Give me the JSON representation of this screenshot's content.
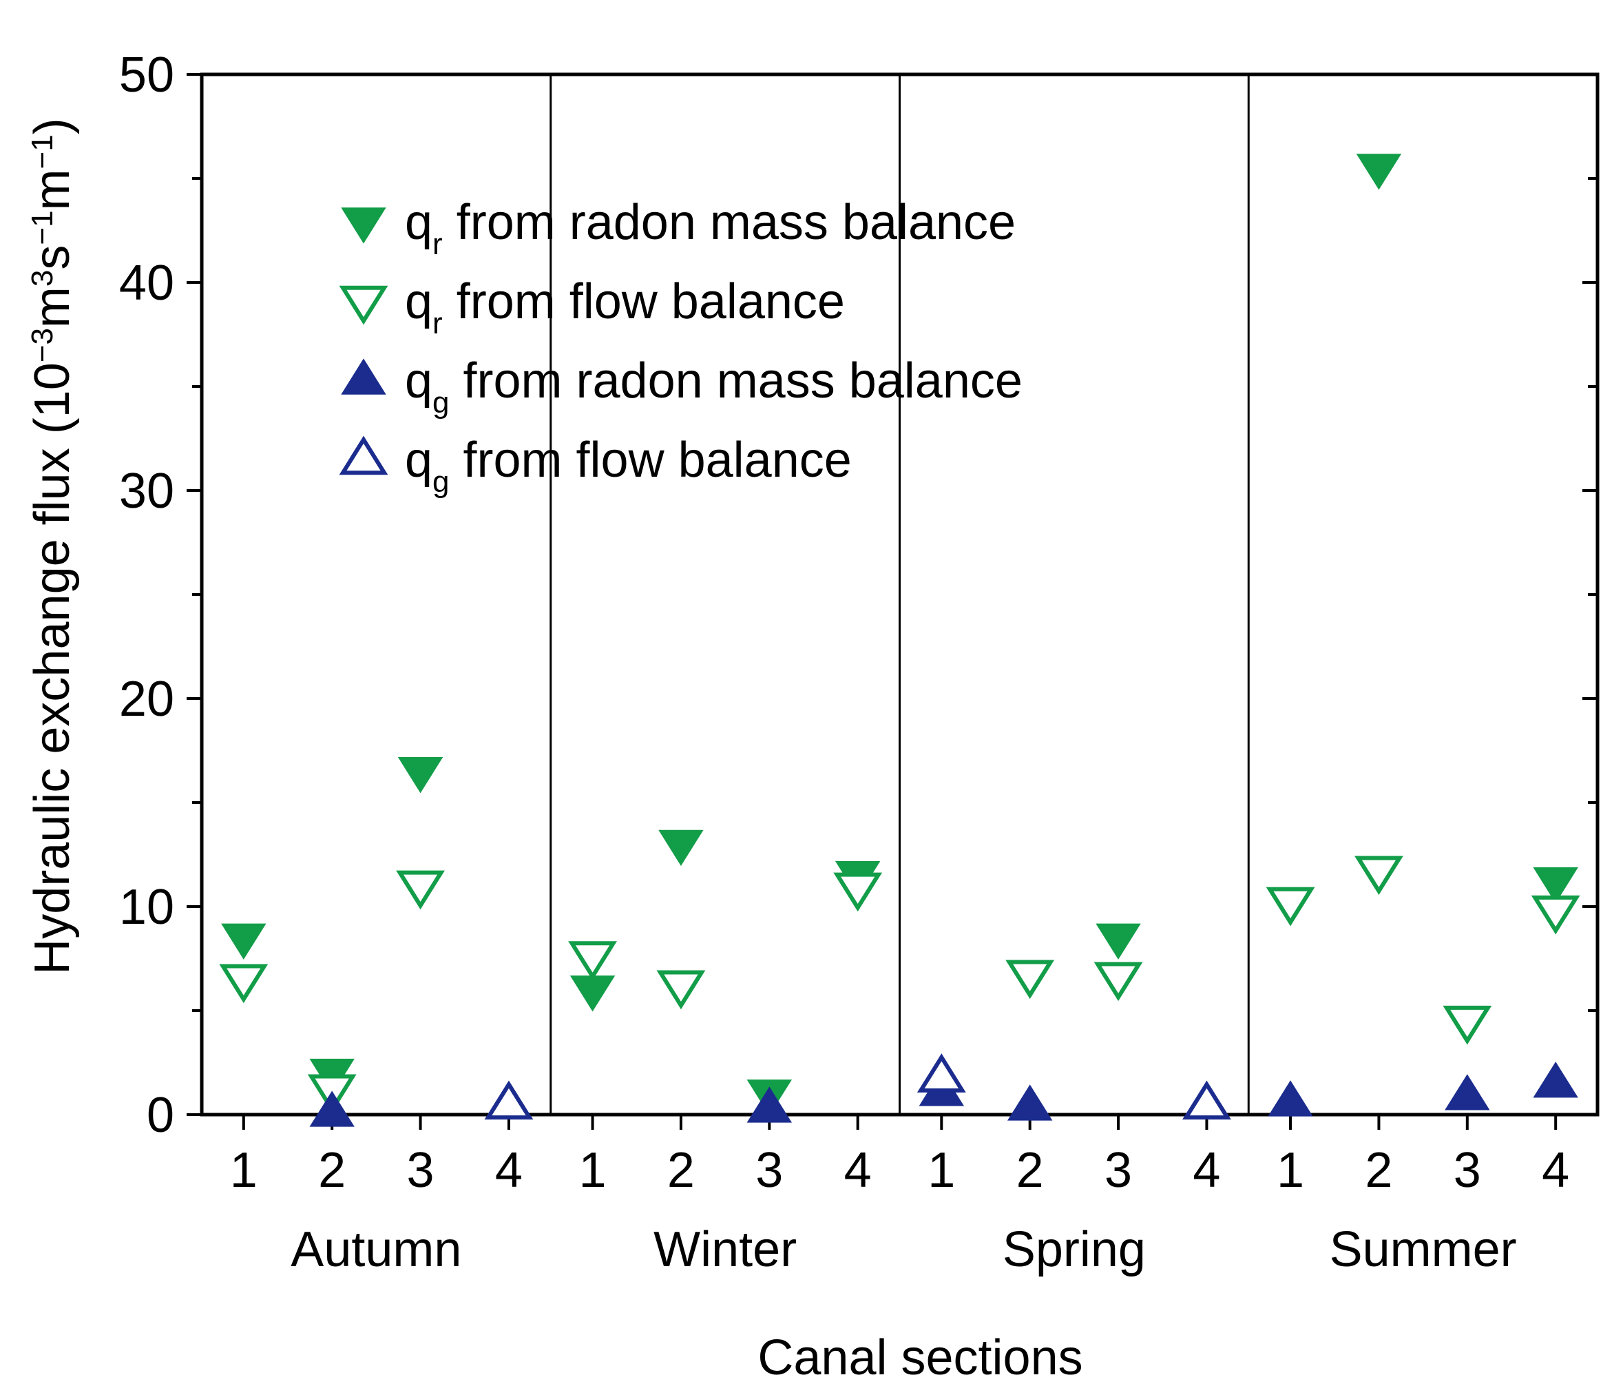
{
  "chart_data": {
    "type": "scatter",
    "xlabel": "Canal sections",
    "ylabel": {
      "text": "Hydraulic exchange flux (10",
      "exp1": "−3",
      "m": "m",
      "exp2": "3",
      "s": "s",
      "exp3": "−1",
      "m2": "m",
      "exp4": "−1",
      "close": ")"
    },
    "ylim": [
      0,
      50
    ],
    "yticks": [
      "0",
      "10",
      "20",
      "30",
      "40",
      "50"
    ],
    "groups": [
      "Autumn",
      "Winter",
      "Spring",
      "Summer"
    ],
    "sections": [
      "1",
      "2",
      "3",
      "4"
    ],
    "legend_position": "top-left",
    "series": [
      {
        "name": "from radon mass balance",
        "symbol": "q",
        "sub": "r",
        "marker": "triangle-down-filled",
        "color": "#129d48",
        "values": [
          8.5,
          2.0,
          16.5,
          null,
          6.0,
          13.0,
          1.0,
          11.5,
          null,
          null,
          8.5,
          null,
          null,
          45.5,
          null,
          11.2
        ]
      },
      {
        "name": "from flow balance",
        "symbol": "q",
        "sub": "r",
        "marker": "triangle-down-open",
        "color": "#129d48",
        "values": [
          6.5,
          1.2,
          11.0,
          null,
          7.6,
          6.2,
          null,
          10.9,
          null,
          6.7,
          6.6,
          null,
          10.2,
          11.7,
          4.5,
          9.8
        ]
      },
      {
        "name": "from radon mass balance",
        "symbol": "q",
        "sub": "g",
        "marker": "triangle-up-filled",
        "color": "#1b2c8e",
        "values": [
          null,
          0.1,
          null,
          null,
          null,
          null,
          0.3,
          null,
          1.1,
          0.4,
          null,
          null,
          0.6,
          null,
          0.9,
          1.5
        ]
      },
      {
        "name": "from flow balance",
        "symbol": "q",
        "sub": "g",
        "marker": "triangle-up-open",
        "color": "#1b2c8e",
        "values": [
          null,
          null,
          null,
          0.5,
          null,
          null,
          null,
          null,
          1.8,
          null,
          null,
          0.5,
          null,
          null,
          null,
          null
        ]
      }
    ]
  }
}
